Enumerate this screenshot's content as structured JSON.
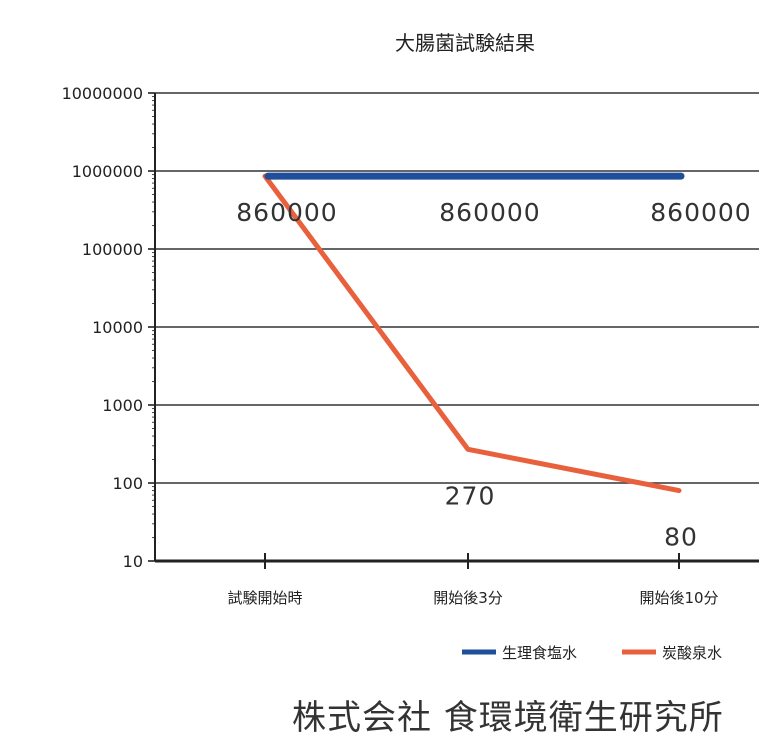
{
  "chart_data": {
    "type": "line",
    "title": "大腸菌試験結果",
    "xlabel": "",
    "ylabel": "",
    "y_scale": "log",
    "ylim": [
      10,
      10000000
    ],
    "y_ticks": [
      "10",
      "100",
      "1000",
      "10000",
      "100000",
      "1000000",
      "10000000"
    ],
    "categories": [
      "試験開始時",
      "開始後3分",
      "開始後10分"
    ],
    "grid": true,
    "legend_position": "bottom-right",
    "series": [
      {
        "name": "生理食塩水",
        "color": "#1f4e9a",
        "values": [
          860000,
          860000,
          860000
        ],
        "labels": [
          "860000",
          "860000",
          "860000"
        ]
      },
      {
        "name": "炭酸泉水",
        "color": "#e8603c",
        "values": [
          860000,
          270,
          80
        ],
        "labels": [
          "",
          "270",
          "80"
        ]
      }
    ]
  },
  "footer": {
    "company": "株式会社 食環境衛生研究所"
  }
}
